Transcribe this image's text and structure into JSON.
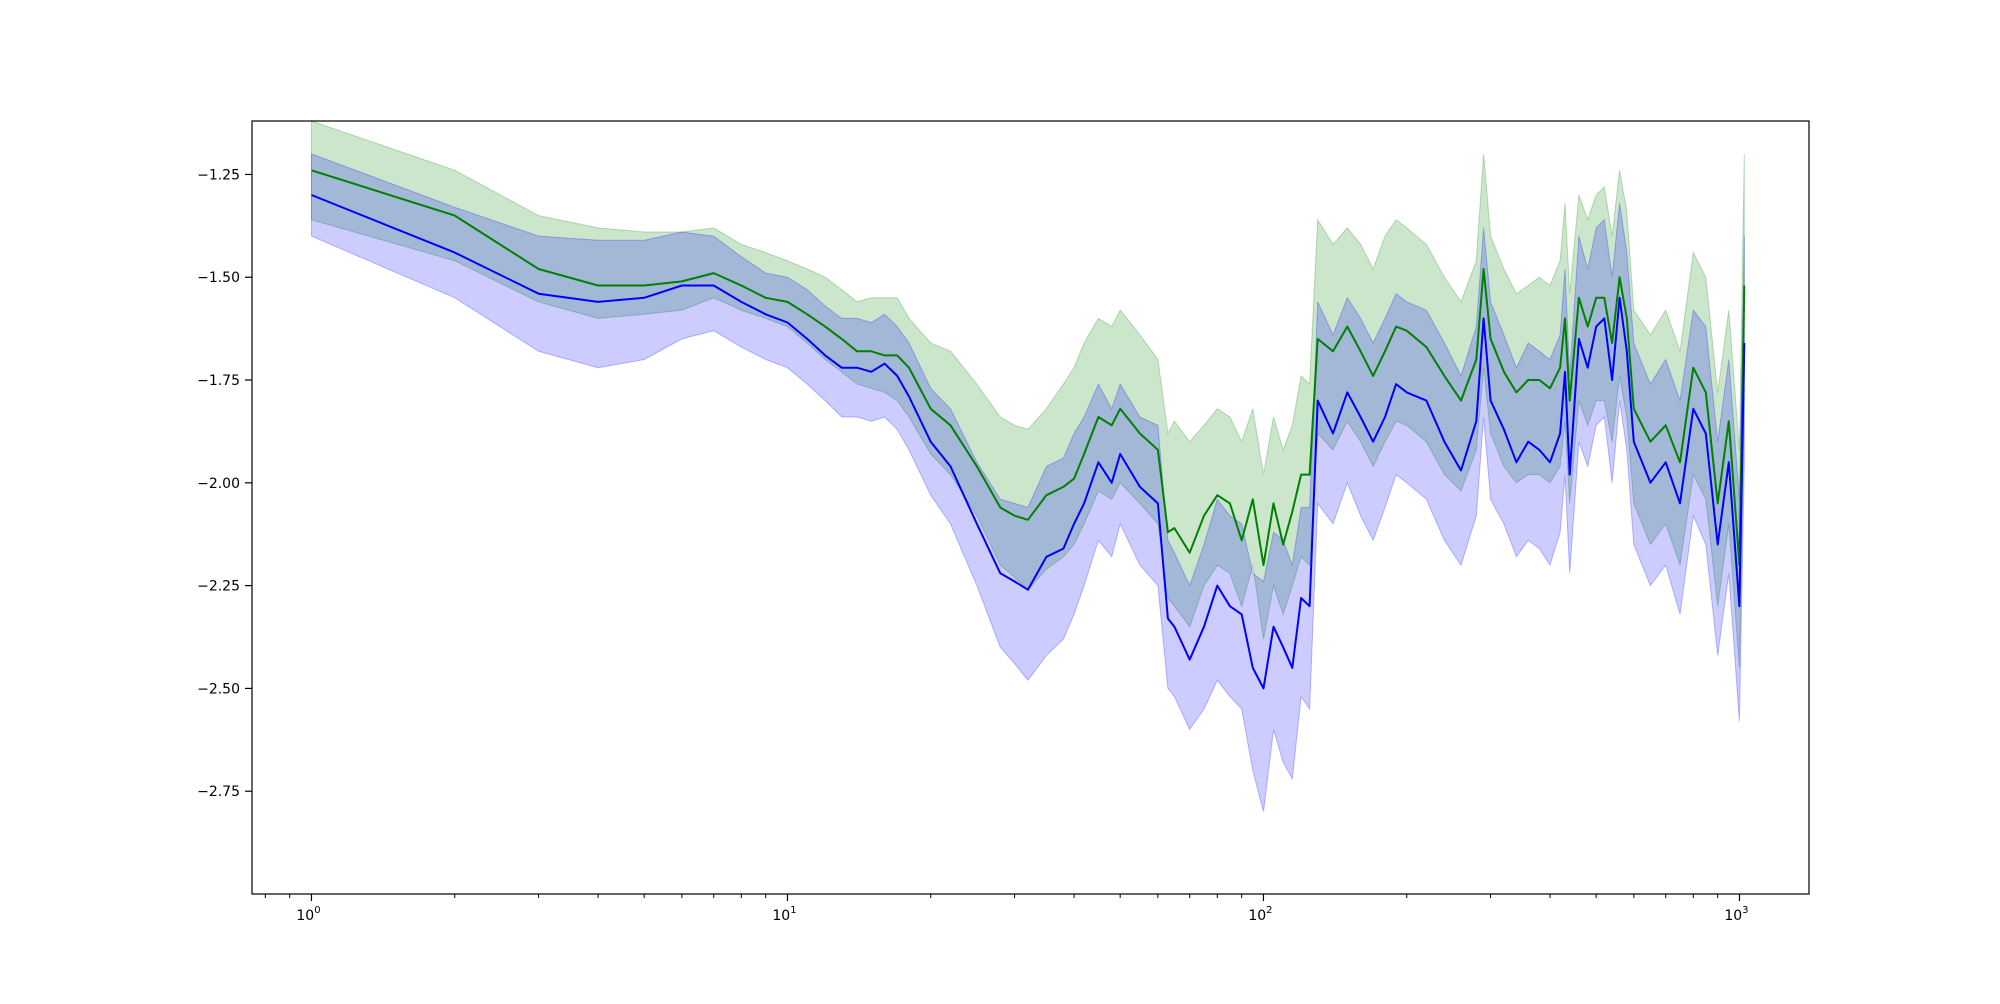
{
  "chart_data": {
    "type": "line",
    "title": "",
    "xlabel": "",
    "ylabel": "",
    "x_scale": "log",
    "xlim": [
      0.75,
      1400
    ],
    "ylim": [
      -3.0,
      -1.12
    ],
    "grid": false,
    "legend": "none",
    "x_ticks": [
      {
        "value": 1,
        "label": "10",
        "exp": "0"
      },
      {
        "value": 10,
        "label": "10",
        "exp": "1"
      },
      {
        "value": 100,
        "label": "10",
        "exp": "2"
      },
      {
        "value": 1000,
        "label": "10",
        "exp": "3"
      }
    ],
    "y_ticks": [
      {
        "value": -1.25,
        "label": "−1.25"
      },
      {
        "value": -1.5,
        "label": "−1.50"
      },
      {
        "value": -1.75,
        "label": "−1.75"
      },
      {
        "value": -2.0,
        "label": "−2.00"
      },
      {
        "value": -2.25,
        "label": "−2.25"
      },
      {
        "value": -2.5,
        "label": "−2.50"
      },
      {
        "value": -2.75,
        "label": "−2.75"
      }
    ],
    "series": [
      {
        "color": "#008000",
        "band_color": "#008000",
        "band_opacity": 0.2,
        "x": [
          1,
          2,
          3,
          4,
          5,
          6,
          7,
          8,
          9,
          10,
          11,
          12,
          13,
          14,
          15,
          16,
          17,
          18,
          20,
          22,
          25,
          28,
          30,
          32,
          35,
          38,
          40,
          42,
          45,
          48,
          50,
          55,
          60,
          63,
          65,
          70,
          75,
          80,
          85,
          90,
          95,
          100,
          105,
          110,
          115,
          120,
          125,
          130,
          140,
          150,
          160,
          170,
          180,
          190,
          200,
          220,
          240,
          260,
          280,
          290,
          300,
          320,
          340,
          360,
          380,
          400,
          420,
          430,
          440,
          460,
          480,
          500,
          520,
          540,
          560,
          580,
          600,
          650,
          700,
          750,
          800,
          850,
          900,
          950,
          1000,
          1024
        ],
        "y": [
          -1.24,
          -1.35,
          -1.48,
          -1.52,
          -1.52,
          -1.51,
          -1.49,
          -1.52,
          -1.55,
          -1.56,
          -1.59,
          -1.62,
          -1.65,
          -1.68,
          -1.68,
          -1.69,
          -1.69,
          -1.72,
          -1.82,
          -1.86,
          -1.96,
          -2.06,
          -2.08,
          -2.09,
          -2.03,
          -2.01,
          -1.99,
          -1.93,
          -1.84,
          -1.86,
          -1.82,
          -1.88,
          -1.92,
          -2.12,
          -2.11,
          -2.17,
          -2.08,
          -2.03,
          -2.05,
          -2.14,
          -2.04,
          -2.2,
          -2.05,
          -2.15,
          -2.07,
          -1.98,
          -1.98,
          -1.65,
          -1.68,
          -1.62,
          -1.68,
          -1.74,
          -1.68,
          -1.62,
          -1.63,
          -1.67,
          -1.74,
          -1.8,
          -1.7,
          -1.48,
          -1.65,
          -1.73,
          -1.78,
          -1.75,
          -1.75,
          -1.77,
          -1.72,
          -1.6,
          -1.8,
          -1.55,
          -1.62,
          -1.55,
          -1.55,
          -1.66,
          -1.5,
          -1.6,
          -1.82,
          -1.9,
          -1.86,
          -1.95,
          -1.72,
          -1.78,
          -2.05,
          -1.85,
          -2.2,
          -1.52
        ],
        "band_lower": [
          -1.36,
          -1.46,
          -1.56,
          -1.6,
          -1.59,
          -1.58,
          -1.55,
          -1.58,
          -1.6,
          -1.62,
          -1.66,
          -1.7,
          -1.73,
          -1.76,
          -1.77,
          -1.78,
          -1.8,
          -1.84,
          -1.93,
          -1.98,
          -2.08,
          -2.2,
          -2.23,
          -2.26,
          -2.21,
          -2.18,
          -2.15,
          -2.1,
          -2.02,
          -2.04,
          -2.0,
          -2.05,
          -2.1,
          -2.28,
          -2.3,
          -2.35,
          -2.25,
          -2.2,
          -2.22,
          -2.3,
          -2.2,
          -2.38,
          -2.25,
          -2.32,
          -2.25,
          -2.18,
          -2.2,
          -1.88,
          -1.92,
          -1.85,
          -1.9,
          -1.96,
          -1.9,
          -1.85,
          -1.86,
          -1.9,
          -1.98,
          -2.02,
          -1.92,
          -1.72,
          -1.88,
          -1.96,
          -2.0,
          -1.98,
          -1.98,
          -2.0,
          -1.96,
          -1.85,
          -2.05,
          -1.8,
          -1.86,
          -1.8,
          -1.8,
          -1.9,
          -1.74,
          -1.84,
          -2.05,
          -2.15,
          -2.1,
          -2.2,
          -1.98,
          -2.04,
          -2.3,
          -2.1,
          -2.45,
          -1.8
        ],
        "band_upper": [
          -1.12,
          -1.24,
          -1.35,
          -1.38,
          -1.39,
          -1.39,
          -1.38,
          -1.42,
          -1.44,
          -1.46,
          -1.48,
          -1.5,
          -1.53,
          -1.56,
          -1.55,
          -1.55,
          -1.55,
          -1.6,
          -1.66,
          -1.68,
          -1.76,
          -1.84,
          -1.86,
          -1.87,
          -1.82,
          -1.76,
          -1.72,
          -1.66,
          -1.6,
          -1.62,
          -1.58,
          -1.64,
          -1.7,
          -1.88,
          -1.85,
          -1.9,
          -1.86,
          -1.82,
          -1.84,
          -1.9,
          -1.82,
          -1.98,
          -1.84,
          -1.92,
          -1.86,
          -1.74,
          -1.76,
          -1.36,
          -1.42,
          -1.38,
          -1.42,
          -1.48,
          -1.4,
          -1.36,
          -1.38,
          -1.42,
          -1.5,
          -1.56,
          -1.46,
          -1.2,
          -1.4,
          -1.48,
          -1.54,
          -1.52,
          -1.5,
          -1.52,
          -1.46,
          -1.32,
          -1.54,
          -1.3,
          -1.36,
          -1.3,
          -1.28,
          -1.4,
          -1.24,
          -1.34,
          -1.58,
          -1.64,
          -1.58,
          -1.68,
          -1.44,
          -1.5,
          -1.78,
          -1.58,
          -1.92,
          -1.2
        ]
      },
      {
        "color": "#0000ff",
        "band_color": "#0000ff",
        "band_opacity": 0.2,
        "x": [
          1,
          2,
          3,
          4,
          5,
          6,
          7,
          8,
          9,
          10,
          11,
          12,
          13,
          14,
          15,
          16,
          17,
          18,
          20,
          22,
          25,
          28,
          30,
          32,
          35,
          38,
          40,
          42,
          45,
          48,
          50,
          55,
          60,
          63,
          65,
          70,
          75,
          80,
          85,
          90,
          95,
          100,
          105,
          110,
          115,
          120,
          125,
          130,
          140,
          150,
          160,
          170,
          180,
          190,
          200,
          220,
          240,
          260,
          280,
          290,
          300,
          320,
          340,
          360,
          380,
          400,
          420,
          430,
          440,
          460,
          480,
          500,
          520,
          540,
          560,
          580,
          600,
          650,
          700,
          750,
          800,
          850,
          900,
          950,
          1000,
          1024
        ],
        "y": [
          -1.3,
          -1.44,
          -1.54,
          -1.56,
          -1.55,
          -1.52,
          -1.52,
          -1.56,
          -1.59,
          -1.61,
          -1.65,
          -1.69,
          -1.72,
          -1.72,
          -1.73,
          -1.71,
          -1.74,
          -1.79,
          -1.9,
          -1.96,
          -2.1,
          -2.22,
          -2.24,
          -2.26,
          -2.18,
          -2.16,
          -2.1,
          -2.05,
          -1.95,
          -2.0,
          -1.93,
          -2.01,
          -2.05,
          -2.33,
          -2.35,
          -2.43,
          -2.35,
          -2.25,
          -2.3,
          -2.32,
          -2.45,
          -2.5,
          -2.35,
          -2.4,
          -2.45,
          -2.28,
          -2.3,
          -1.8,
          -1.88,
          -1.78,
          -1.84,
          -1.9,
          -1.84,
          -1.76,
          -1.78,
          -1.8,
          -1.9,
          -1.97,
          -1.85,
          -1.6,
          -1.8,
          -1.87,
          -1.95,
          -1.9,
          -1.92,
          -1.95,
          -1.88,
          -1.73,
          -1.98,
          -1.65,
          -1.72,
          -1.62,
          -1.6,
          -1.75,
          -1.55,
          -1.68,
          -1.9,
          -2.0,
          -1.95,
          -2.05,
          -1.82,
          -1.88,
          -2.15,
          -1.95,
          -2.3,
          -1.66
        ],
        "band_lower": [
          -1.4,
          -1.55,
          -1.68,
          -1.72,
          -1.7,
          -1.65,
          -1.63,
          -1.67,
          -1.7,
          -1.72,
          -1.76,
          -1.8,
          -1.84,
          -1.84,
          -1.85,
          -1.84,
          -1.87,
          -1.92,
          -2.03,
          -2.1,
          -2.25,
          -2.4,
          -2.44,
          -2.48,
          -2.42,
          -2.38,
          -2.32,
          -2.25,
          -2.14,
          -2.18,
          -2.1,
          -2.2,
          -2.25,
          -2.5,
          -2.52,
          -2.6,
          -2.55,
          -2.48,
          -2.52,
          -2.55,
          -2.7,
          -2.8,
          -2.6,
          -2.68,
          -2.72,
          -2.52,
          -2.55,
          -2.05,
          -2.1,
          -2.0,
          -2.08,
          -2.14,
          -2.06,
          -1.98,
          -2.0,
          -2.04,
          -2.14,
          -2.2,
          -2.08,
          -1.84,
          -2.04,
          -2.1,
          -2.18,
          -2.14,
          -2.16,
          -2.2,
          -2.12,
          -1.98,
          -2.22,
          -1.9,
          -1.96,
          -1.86,
          -1.84,
          -2.0,
          -1.8,
          -1.92,
          -2.15,
          -2.25,
          -2.2,
          -2.32,
          -2.08,
          -2.15,
          -2.42,
          -2.22,
          -2.58,
          -1.95
        ],
        "band_upper": [
          -1.2,
          -1.33,
          -1.4,
          -1.41,
          -1.41,
          -1.39,
          -1.4,
          -1.45,
          -1.49,
          -1.5,
          -1.53,
          -1.57,
          -1.6,
          -1.6,
          -1.61,
          -1.59,
          -1.62,
          -1.66,
          -1.77,
          -1.82,
          -1.95,
          -2.04,
          -2.05,
          -2.06,
          -1.96,
          -1.94,
          -1.88,
          -1.84,
          -1.76,
          -1.82,
          -1.76,
          -1.84,
          -1.86,
          -2.14,
          -2.17,
          -2.25,
          -2.15,
          -2.04,
          -2.08,
          -2.1,
          -2.22,
          -2.24,
          -2.12,
          -2.14,
          -2.2,
          -2.06,
          -2.06,
          -1.56,
          -1.64,
          -1.55,
          -1.6,
          -1.66,
          -1.6,
          -1.54,
          -1.56,
          -1.58,
          -1.66,
          -1.74,
          -1.62,
          -1.38,
          -1.56,
          -1.64,
          -1.72,
          -1.66,
          -1.68,
          -1.7,
          -1.64,
          -1.48,
          -1.74,
          -1.4,
          -1.48,
          -1.38,
          -1.36,
          -1.5,
          -1.32,
          -1.44,
          -1.66,
          -1.76,
          -1.7,
          -1.8,
          -1.58,
          -1.62,
          -1.9,
          -1.7,
          -2.04,
          -1.4
        ]
      }
    ]
  }
}
